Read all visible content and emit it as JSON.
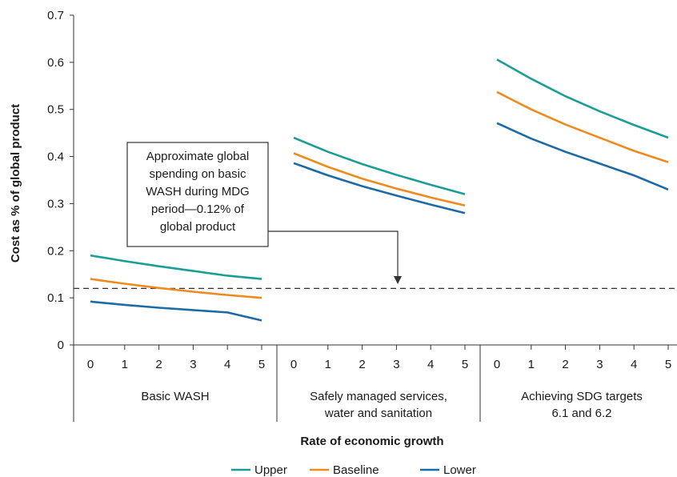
{
  "chart_data": {
    "type": "line",
    "ylabel": "Cost as % of global product",
    "xlabel": "Rate of economic growth",
    "ylim": [
      0,
      0.7
    ],
    "yticks": [
      "0",
      "0.1",
      "0.2",
      "0.3",
      "0.4",
      "0.5",
      "0.6",
      "0.7"
    ],
    "x": [
      0,
      1,
      2,
      3,
      4,
      5
    ],
    "xtick_labels": [
      "0",
      "1",
      "2",
      "3",
      "4",
      "5"
    ],
    "groups": [
      {
        "label": [
          "Basic WASH"
        ],
        "series": [
          {
            "name": "Upper",
            "values": [
              0.19,
              0.178,
              0.167,
              0.157,
              0.147,
              0.14
            ]
          },
          {
            "name": "Baseline",
            "values": [
              0.14,
              0.13,
              0.121,
              0.113,
              0.106,
              0.1
            ]
          },
          {
            "name": "Lower",
            "values": [
              0.092,
              0.085,
              0.079,
              0.074,
              0.069,
              0.052
            ]
          }
        ]
      },
      {
        "label": [
          "Safely managed services,",
          "water and sanitation"
        ],
        "series": [
          {
            "name": "Upper",
            "values": [
              0.44,
              0.41,
              0.384,
              0.361,
              0.34,
              0.32
            ]
          },
          {
            "name": "Baseline",
            "values": [
              0.407,
              0.378,
              0.353,
              0.332,
              0.313,
              0.296
            ]
          },
          {
            "name": "Lower",
            "values": [
              0.386,
              0.36,
              0.337,
              0.317,
              0.298,
              0.28
            ]
          }
        ]
      },
      {
        "label": [
          "Achieving SDG targets",
          "6.1 and 6.2"
        ],
        "series": [
          {
            "name": "Upper",
            "values": [
              0.606,
              0.565,
              0.528,
              0.496,
              0.467,
              0.44
            ]
          },
          {
            "name": "Baseline",
            "values": [
              0.537,
              0.5,
              0.468,
              0.44,
              0.412,
              0.388
            ]
          },
          {
            "name": "Lower",
            "values": [
              0.471,
              0.438,
              0.41,
              0.385,
              0.36,
              0.33
            ]
          }
        ]
      }
    ],
    "reference_line": {
      "value": 0.12,
      "style": "dashed"
    },
    "annotation": {
      "lines": [
        "Approximate global",
        "spending on basic",
        "WASH during MDG",
        "period—0.12% of",
        "global product"
      ]
    },
    "legend": {
      "placement": "bottom-center",
      "entries": [
        "Upper",
        "Baseline",
        "Lower"
      ]
    },
    "colors": {
      "Upper": "#1a9e96",
      "Baseline": "#ef8a1e",
      "Lower": "#1c6aa6"
    },
    "grid": false
  }
}
